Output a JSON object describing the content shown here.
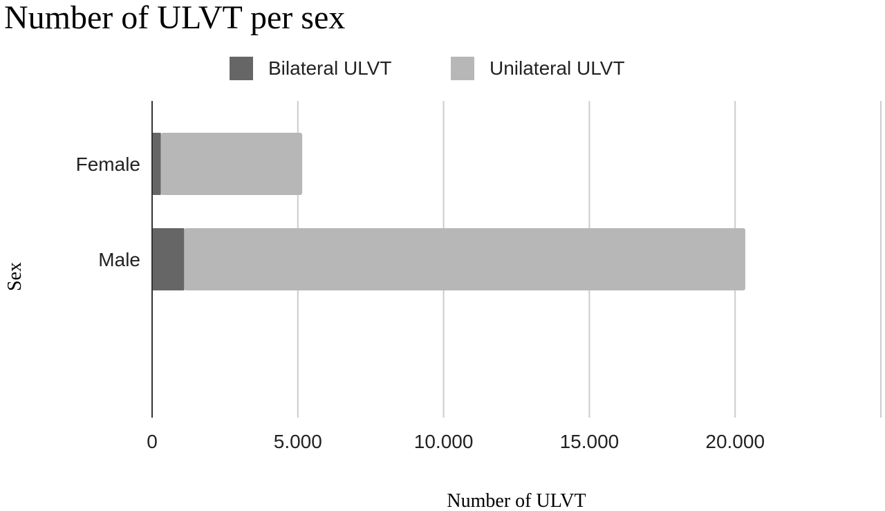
{
  "chart_data": {
    "type": "bar",
    "orientation": "horizontal",
    "stacked": true,
    "title": "Number of ULVT per sex",
    "xlabel": "Number of ULVT",
    "ylabel": "Sex",
    "categories": [
      "Female",
      "Male"
    ],
    "series": [
      {
        "name": "Bilateral ULVT",
        "color": "#666666",
        "values": [
          300,
          1100
        ]
      },
      {
        "name": "Unilateral ULVT",
        "color": "#b7b7b7",
        "values": [
          4850,
          19250
        ]
      }
    ],
    "xlim": [
      0,
      25000
    ],
    "xticks": [
      0,
      5000,
      10000,
      15000,
      20000
    ],
    "xtick_labels": [
      "0",
      "5.000",
      "10.000",
      "15.000",
      "20.000"
    ],
    "grid": true,
    "legend_position": "top"
  }
}
